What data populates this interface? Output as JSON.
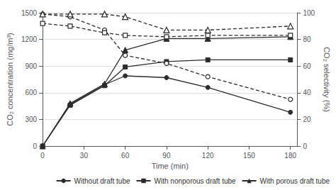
{
  "chart_data": {
    "type": "line",
    "xlabel": "Time (min)",
    "ylabel": "CO₂ concentration (mg/m³)",
    "y2label": "CO₂ selectivity (%)",
    "x": [
      0,
      20,
      45,
      60,
      90,
      120,
      180
    ],
    "xlim": [
      0,
      185
    ],
    "xticks": [
      0,
      30,
      60,
      90,
      120,
      150,
      180
    ],
    "ylim": [
      0,
      1500
    ],
    "yticks": [
      0,
      300,
      600,
      900,
      1200,
      1500
    ],
    "y2lim": [
      0,
      100
    ],
    "y2ticks": [
      0,
      20,
      40,
      60,
      80,
      100
    ],
    "grid": true,
    "legend": "lower right",
    "series": [
      {
        "name": "Without draft tube",
        "color": "#2b2b2b",
        "marker": "circle",
        "line_style": "solid",
        "values": [
          0,
          470,
          690,
          790,
          770,
          660,
          380
        ]
      },
      {
        "name": "With nonporous draft tube",
        "color": "#2b2b2b",
        "marker": "square",
        "line_style": "solid",
        "values": [
          0,
          460,
          680,
          890,
          950,
          970,
          970
        ]
      },
      {
        "name": "With porous draft tube",
        "color": "#2b2b2b",
        "marker": "triangle",
        "line_style": "solid",
        "values": [
          0,
          480,
          700,
          1080,
          1210,
          1210,
          1230
        ]
      },
      {
        "name": "Without draft tube",
        "color": "#2b2b2b",
        "marker": "circle",
        "line_style": "dashed",
        "axis": "y2",
        "values": [
          99,
          97,
          87,
          68,
          62,
          52,
          35
        ]
      },
      {
        "name": "With nonporous draft tube",
        "color": "#2b2b2b",
        "marker": "square",
        "line_style": "dashed",
        "axis": "y2",
        "values": [
          92,
          90,
          85,
          83,
          82,
          83,
          83
        ]
      },
      {
        "name": "With porous draft tube",
        "color": "#2b2b2b",
        "marker": "triangle",
        "line_style": "dashed",
        "axis": "y2",
        "values": [
          99,
          99,
          99,
          97,
          87,
          87,
          90
        ]
      }
    ]
  }
}
